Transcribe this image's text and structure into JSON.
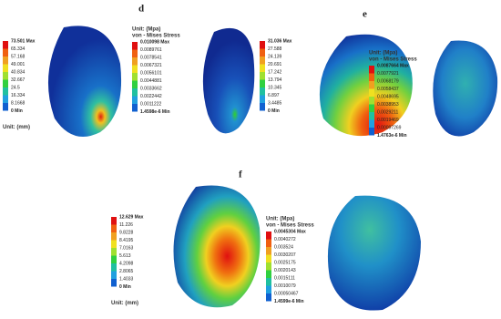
{
  "panel_labels": [
    "d",
    "e",
    "f"
  ],
  "panels": [
    {
      "header": [],
      "ticks": [
        "73.501 Max",
        "65.334",
        "57.168",
        "49.001",
        "40.834",
        "32.667",
        "24.5",
        "16.334",
        "8.1668",
        "0 Min"
      ],
      "footer": [
        "Unit: (mm)"
      ]
    },
    {
      "header": [
        "Unit: (Mpa)",
        "von - Mises Stress"
      ],
      "ticks": [
        "0.010098 Max",
        "0.0089761",
        "0.0078541",
        "0.0067321",
        "0.0056101",
        "0.0044881",
        "0.0033662",
        "0.0022442",
        "0.0011222",
        "1.4598e-6 Min"
      ],
      "footer": []
    },
    {
      "header": [],
      "ticks": [
        "31.036 Max",
        "27.588",
        "24.139",
        "20.691",
        "17.242",
        "13.794",
        "10.345",
        "6.897",
        "3.4485",
        "0 Min"
      ],
      "footer": []
    },
    {
      "header": [
        "Unit: (Mpa)",
        "von - Mises Stress"
      ],
      "ticks": [
        "0.0087664 Max",
        "0.0077921",
        "0.0068179",
        "0.0058437",
        "0.0048695",
        "0.0038953",
        "0.0029211",
        "0.0019469",
        "0.00097269",
        "1.4763e-6 Min"
      ],
      "footer": []
    },
    {
      "header": [],
      "ticks": [
        "12.629 Max",
        "11.226",
        "9.8228",
        "8.4195",
        "7.0163",
        "5.613",
        "4.2098",
        "2.8065",
        "1.4033",
        "0 Min"
      ],
      "footer": [
        "Unit: (mm)"
      ]
    },
    {
      "header": [
        "Unit: (Mpa)",
        "von - Mises Stress"
      ],
      "ticks": [
        "0.0045304 Max",
        "0.0040272",
        "0.003524",
        "0.0030207",
        "0.0025175",
        "0.0020143",
        "0.0015111",
        "0.0010079",
        "0.00050467",
        "1.4599e-6 Min"
      ],
      "footer": []
    }
  ]
}
